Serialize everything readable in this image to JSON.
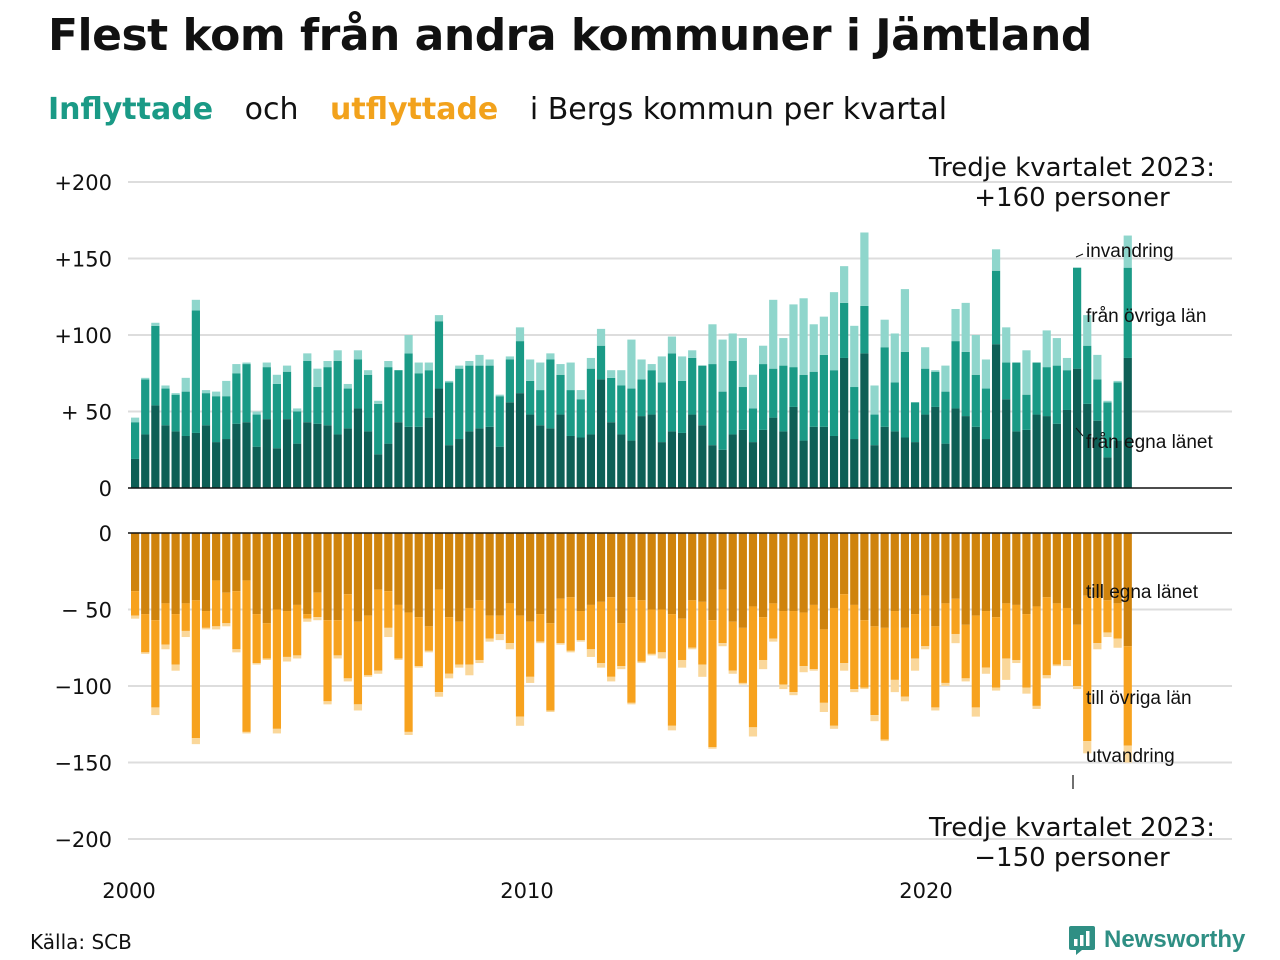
{
  "title": "Flest kom från andra kommuner i Jämtland",
  "subtitle": {
    "inflyttade": "Inflyttade",
    "och": "och",
    "utflyttade": "utflyttade",
    "rest": "i Bergs  kommun  per  kvartal"
  },
  "source": "Källa: SCB",
  "brand": "Newsworthy",
  "colors": {
    "in_own": "#0e5f56",
    "in_other": "#1a9a86",
    "in_immigration": "#8fd6cc",
    "out_own": "#cf830d",
    "out_other": "#f7a21e",
    "out_emigration": "#fad79a",
    "grid": "#dddddd"
  },
  "chart_data": {
    "type": "bar",
    "stacked": true,
    "x_start": "2000 Q1",
    "xticks": [
      "2000",
      "2010",
      "2020"
    ],
    "top_panel": {
      "yticks": [
        "+200",
        "+150",
        "+100",
        "+ 50",
        "0"
      ],
      "ylim": [
        0,
        200
      ],
      "annotation": [
        "Tredje kvartalet 2023:",
        "+160 personer"
      ],
      "labels": {
        "invandring": "invandring",
        "fran_ovriga_lan": "från övriga län",
        "fran_egna_lanet": "från egna länet"
      },
      "series": [
        {
          "name": "från egna länet",
          "values": [
            19,
            35,
            54,
            41,
            37,
            34,
            36,
            41,
            30,
            32,
            42,
            43,
            27,
            45,
            26,
            45,
            29,
            43,
            42,
            41,
            35,
            39,
            52,
            37,
            22,
            29,
            43,
            40,
            40,
            46,
            65,
            28,
            32,
            37,
            39,
            40,
            27,
            56,
            62,
            48,
            41,
            39,
            48,
            34,
            33,
            35,
            71,
            43,
            35,
            31,
            47,
            48,
            30,
            37,
            36,
            48,
            41,
            28,
            25,
            35,
            38,
            30,
            38,
            46,
            37,
            53,
            31,
            40,
            40,
            34,
            85,
            32,
            88,
            28,
            40,
            37,
            33,
            30,
            48,
            53,
            29,
            52,
            47,
            40,
            32,
            94,
            58,
            37,
            38,
            48,
            47,
            42,
            51,
            78,
            55,
            44,
            20,
            31,
            85
          ]
        },
        {
          "name": "från övriga län",
          "values": [
            24,
            36,
            52,
            24,
            24,
            29,
            80,
            21,
            30,
            28,
            33,
            38,
            21,
            34,
            42,
            31,
            21,
            40,
            24,
            38,
            48,
            26,
            32,
            37,
            33,
            50,
            34,
            48,
            35,
            31,
            44,
            41,
            46,
            43,
            41,
            40,
            33,
            28,
            34,
            22,
            23,
            45,
            26,
            30,
            25,
            43,
            22,
            29,
            32,
            34,
            24,
            29,
            39,
            51,
            34,
            37,
            39,
            53,
            38,
            48,
            28,
            22,
            43,
            32,
            43,
            26,
            43,
            36,
            47,
            43,
            36,
            34,
            31,
            20,
            52,
            32,
            56,
            26,
            30,
            23,
            34,
            44,
            42,
            34,
            33,
            48,
            24,
            45,
            23,
            34,
            32,
            38,
            26,
            66,
            38,
            27,
            36,
            38,
            59
          ]
        },
        {
          "name": "invandring",
          "values": [
            3,
            1,
            2,
            2,
            1,
            9,
            7,
            2,
            3,
            10,
            6,
            1,
            2,
            3,
            6,
            4,
            2,
            5,
            12,
            4,
            7,
            3,
            6,
            3,
            2,
            4,
            0,
            12,
            7,
            5,
            4,
            1,
            2,
            3,
            7,
            4,
            1,
            2,
            9,
            14,
            18,
            4,
            7,
            18,
            6,
            7,
            11,
            5,
            10,
            32,
            13,
            4,
            17,
            11,
            16,
            5,
            0,
            26,
            34,
            18,
            32,
            22,
            12,
            45,
            18,
            41,
            50,
            31,
            25,
            51,
            24,
            40,
            48,
            19,
            18,
            32,
            41,
            0,
            14,
            1,
            17,
            21,
            32,
            26,
            19,
            14,
            23,
            0,
            29,
            0,
            24,
            18,
            8,
            0,
            20,
            16,
            1,
            1,
            21
          ]
        }
      ]
    },
    "bottom_panel": {
      "yticks": [
        "0",
        "− 50",
        "−100",
        "−150",
        "−200"
      ],
      "ylim": [
        -200,
        0
      ],
      "annotation": [
        "Tredje kvartalet 2023:",
        "−150 personer"
      ],
      "labels": {
        "till_egna_lanet": "till egna länet",
        "till_ovriga_lan": "till övriga län",
        "utvandring": "utvandring"
      },
      "series": [
        {
          "name": "till egna länet",
          "values": [
            -38,
            -53,
            -57,
            -46,
            -53,
            -46,
            -44,
            -51,
            -31,
            -39,
            -38,
            -31,
            -53,
            -59,
            -50,
            -51,
            -47,
            -53,
            -39,
            -57,
            -57,
            -40,
            -58,
            -54,
            -37,
            -38,
            -47,
            -52,
            -55,
            -61,
            -37,
            -55,
            -58,
            -49,
            -44,
            -54,
            -54,
            -46,
            -54,
            -58,
            -53,
            -59,
            -43,
            -42,
            -51,
            -47,
            -45,
            -42,
            -59,
            -42,
            -44,
            -50,
            -50,
            -53,
            -56,
            -44,
            -45,
            -57,
            -37,
            -58,
            -62,
            -48,
            -55,
            -46,
            -51,
            -51,
            -52,
            -47,
            -63,
            -49,
            -40,
            -47,
            -57,
            -61,
            -62,
            -51,
            -62,
            -53,
            -41,
            -61,
            -46,
            -43,
            -60,
            -54,
            -51,
            -55,
            -46,
            -47,
            -53,
            -48,
            -42,
            -46,
            -49,
            -60,
            -41,
            -42,
            -44,
            -46,
            -74
          ]
        },
        {
          "name": "till övriga län",
          "values": [
            -16,
            -25,
            -57,
            -27,
            -33,
            -18,
            -90,
            -11,
            -30,
            -20,
            -38,
            -99,
            -32,
            -23,
            -78,
            -30,
            -33,
            -3,
            -16,
            -53,
            -23,
            -55,
            -54,
            -39,
            -53,
            -24,
            -35,
            -78,
            -32,
            -16,
            -67,
            -37,
            -28,
            -37,
            -39,
            -15,
            -12,
            -26,
            -66,
            -36,
            -18,
            -57,
            -29,
            -35,
            -19,
            -29,
            -40,
            -52,
            -28,
            -69,
            -40,
            -29,
            -28,
            -73,
            -27,
            -31,
            -41,
            -83,
            -35,
            -32,
            -36,
            -79,
            -28,
            -23,
            -48,
            -53,
            -35,
            -42,
            -48,
            -77,
            -45,
            -55,
            -44,
            -58,
            -73,
            -45,
            -45,
            -29,
            -33,
            -53,
            -52,
            -23,
            -35,
            -60,
            -37,
            -46,
            -36,
            -36,
            -48,
            -65,
            -51,
            -40,
            -34,
            -40,
            -95,
            -30,
            -21,
            -23,
            -65
          ]
        },
        {
          "name": "utvandring",
          "values": [
            -2,
            -1,
            -5,
            -3,
            -4,
            -4,
            -4,
            -1,
            -2,
            -2,
            -2,
            -1,
            -1,
            -1,
            -3,
            -3,
            -2,
            -2,
            -2,
            -2,
            -2,
            -2,
            -4,
            -1,
            -2,
            -6,
            -1,
            -2,
            -1,
            -1,
            -3,
            -3,
            -2,
            -7,
            -2,
            -2,
            -4,
            -4,
            -6,
            -4,
            -1,
            -1,
            -1,
            -1,
            -1,
            -5,
            -3,
            -3,
            -2,
            -1,
            -1,
            -1,
            -4,
            -3,
            -5,
            -1,
            -8,
            -1,
            -2,
            -2,
            -1,
            -6,
            -6,
            -2,
            -3,
            -2,
            -4,
            -1,
            -6,
            -2,
            -5,
            -2,
            -1,
            -4,
            -1,
            -8,
            -3,
            -8,
            -2,
            -2,
            -2,
            -6,
            -2,
            -6,
            -4,
            -2,
            -14,
            -2,
            -4,
            -2,
            -2,
            -1,
            -4,
            -2,
            -8,
            -4,
            -3,
            -6,
            -11
          ]
        }
      ]
    }
  }
}
